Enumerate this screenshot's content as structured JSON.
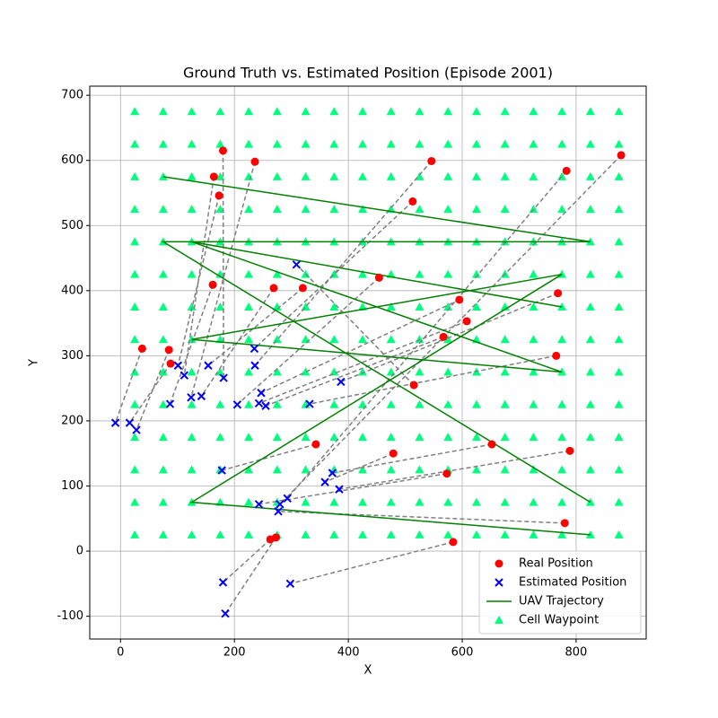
{
  "chart_data": {
    "type": "scatter",
    "title": "Ground Truth vs. Estimated Position (Episode 2001)",
    "x_label": "X",
    "y_label": "Y",
    "xlim": [
      -54,
      923
    ],
    "ylim": [
      -135,
      714
    ],
    "xticks": [
      0,
      200,
      400,
      600,
      800
    ],
    "yticks": [
      -100,
      0,
      100,
      200,
      300,
      400,
      500,
      600,
      700
    ],
    "grid": true,
    "legend": "lower right",
    "series": [
      {
        "name": "Real Position",
        "color": "#ff0000",
        "marker": "circle",
        "x": [
          38,
          85,
          88,
          164,
          173,
          180,
          162,
          236,
          269,
          320,
          454,
          513,
          546,
          595,
          608,
          567,
          515,
          765,
          768,
          343,
          479,
          652,
          789,
          573,
          780,
          783,
          879,
          263,
          273,
          584
        ],
        "y": [
          311,
          309,
          288,
          575,
          546,
          615,
          409,
          598,
          404,
          404,
          420,
          537,
          599,
          386,
          353,
          329,
          255,
          300,
          396,
          164,
          150,
          164,
          154,
          119,
          43,
          584,
          608,
          18,
          21,
          14
        ]
      },
      {
        "name": "Estimated Position",
        "color": "#0000ff",
        "marker": "x",
        "x": [
          -9,
          28,
          16,
          112,
          101,
          181,
          87,
          124,
          142,
          154,
          205,
          235,
          236,
          247,
          243,
          255,
          309,
          332,
          387,
          178,
          359,
          372,
          384,
          243,
          277,
          293,
          280,
          180,
          184,
          298
        ],
        "y": [
          197,
          186,
          197,
          270,
          285,
          266,
          226,
          236,
          238,
          285,
          225,
          311,
          285,
          243,
          227,
          223,
          440,
          226,
          260,
          124,
          106,
          120,
          95,
          72,
          61,
          81,
          72,
          -48,
          -96,
          -50
        ]
      },
      {
        "name": "UAV Trajectory",
        "color": "#008000",
        "marker": "line",
        "x": [
          75,
          825,
          75,
          825,
          null,
          825,
          125,
          775,
          125,
          775,
          125,
          775
        ],
        "y": [
          575,
          475,
          475,
          75,
          null,
          25,
          75,
          425,
          325,
          275,
          475,
          375
        ]
      },
      {
        "name": "Cell Waypoint",
        "color": "#00ff7f",
        "marker": "triangle",
        "grid_x": [
          25,
          75,
          125,
          175,
          225,
          275,
          325,
          375,
          425,
          475,
          525,
          575,
          625,
          675,
          725,
          775,
          825,
          875
        ],
        "grid_y": [
          25,
          75,
          125,
          175,
          225,
          275,
          325,
          375,
          425,
          475,
          525,
          575,
          625,
          675
        ]
      }
    ]
  }
}
